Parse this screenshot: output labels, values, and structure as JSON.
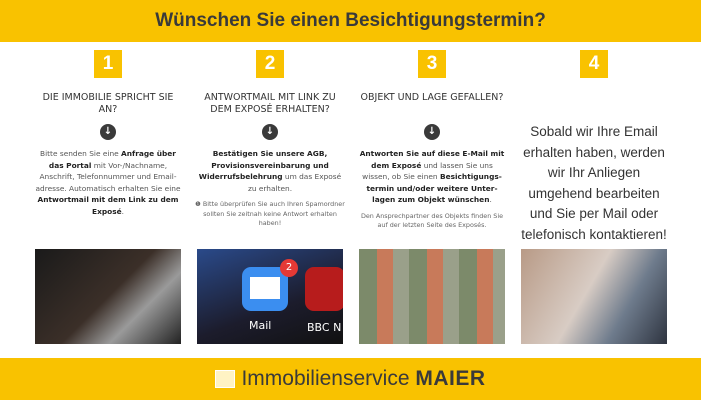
{
  "title": "Wünschen Sie einen Besichtigungstermin?",
  "steps": [
    {
      "number": "1",
      "heading": "DIE IMMOBILIE SPRICHT SIE AN?",
      "text": [
        {
          "t": "Bitte senden Sie eine "
        },
        {
          "t": "Anfrage über das Portal",
          "b": true
        },
        {
          "t": " mit Vor-/Nachname, Anschrift, Telefonnummer und Email-adresse. Automatisch erhalten Sie eine "
        },
        {
          "t": "Antwortmail mit dem Link zu dem Exposé",
          "b": true
        },
        {
          "t": "."
        }
      ]
    },
    {
      "number": "2",
      "heading": "ANTWORTMAIL MIT LINK ZU DEM EXPOSÉ ERHALTEN?",
      "text": [
        {
          "t": "Bestätigen Sie unsere AGB, Provisionsvereinbarung und Widerrufsbelehrung",
          "b": true
        },
        {
          "t": " um das Exposé zu erhalten."
        }
      ],
      "note": "❶ Bitte überprüfen Sie auch Ihren Spamordner sollten Sie zeitnah keine Antwort erhalten haben!",
      "photo_labels": {
        "mail": "Mail",
        "badge": "2",
        "news": "BBC N"
      }
    },
    {
      "number": "3",
      "heading": "OBJEKT UND LAGE GEFALLEN?",
      "text": [
        {
          "t": "Antworten Sie auf diese E-Mail mit dem Exposé",
          "b": true
        },
        {
          "t": " und lassen Sie uns wissen, ob Sie einen "
        },
        {
          "t": "Besichtigungs-termin und/oder weitere Unter-lagen zum Objekt wünschen",
          "b": true
        },
        {
          "t": "."
        }
      ],
      "note": "Den Ansprechpartner des Objekts finden Sie auf der letzten Seite des Exposés."
    },
    {
      "number": "4",
      "big": "Sobald wir Ihre Email erhalten haben, werden wir Ihr Anliegen umgehend bearbeiten und Sie per Mail oder telefonisch kontaktieren!"
    }
  ],
  "brand": {
    "name": "Immobilienservice",
    "name_bold": "MAIER"
  },
  "colors": {
    "accent": "#f9c200",
    "dark": "#3a3a3a"
  }
}
